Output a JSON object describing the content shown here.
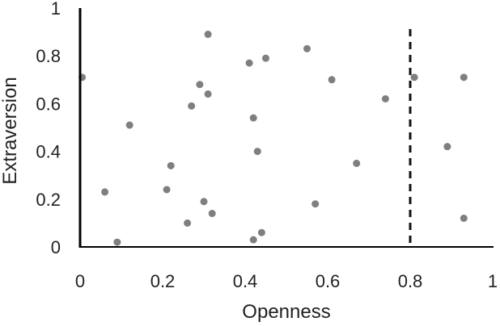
{
  "chart_data": {
    "type": "scatter",
    "xlabel": "Openness",
    "ylabel": "Extraversion",
    "xlim": [
      0,
      1
    ],
    "ylim": [
      0,
      1
    ],
    "x_ticks": [
      "0",
      "0.2",
      "0.4",
      "0.6",
      "0.8",
      "1"
    ],
    "y_ticks": [
      "0",
      "0.2",
      "0.4",
      "0.6",
      "0.8",
      "1"
    ],
    "grid": false,
    "legend": "none",
    "reference_line": {
      "axis": "x",
      "value": 0.8,
      "style": "dashed"
    },
    "marker_color": "#7f7f7f",
    "points": [
      {
        "x": 0.005,
        "y": 0.71
      },
      {
        "x": 0.06,
        "y": 0.23
      },
      {
        "x": 0.09,
        "y": 0.02
      },
      {
        "x": 0.12,
        "y": 0.51
      },
      {
        "x": 0.21,
        "y": 0.24
      },
      {
        "x": 0.22,
        "y": 0.34
      },
      {
        "x": 0.26,
        "y": 0.1
      },
      {
        "x": 0.27,
        "y": 0.59
      },
      {
        "x": 0.29,
        "y": 0.68
      },
      {
        "x": 0.3,
        "y": 0.19
      },
      {
        "x": 0.31,
        "y": 0.89
      },
      {
        "x": 0.31,
        "y": 0.64
      },
      {
        "x": 0.32,
        "y": 0.14
      },
      {
        "x": 0.41,
        "y": 0.77
      },
      {
        "x": 0.42,
        "y": 0.54
      },
      {
        "x": 0.42,
        "y": 0.03
      },
      {
        "x": 0.43,
        "y": 0.4
      },
      {
        "x": 0.44,
        "y": 0.06
      },
      {
        "x": 0.45,
        "y": 0.79
      },
      {
        "x": 0.55,
        "y": 0.83
      },
      {
        "x": 0.57,
        "y": 0.18
      },
      {
        "x": 0.61,
        "y": 0.7
      },
      {
        "x": 0.67,
        "y": 0.35
      },
      {
        "x": 0.74,
        "y": 0.62
      },
      {
        "x": 0.81,
        "y": 0.71
      },
      {
        "x": 0.89,
        "y": 0.42
      },
      {
        "x": 0.93,
        "y": 0.71
      },
      {
        "x": 0.93,
        "y": 0.12
      }
    ]
  }
}
